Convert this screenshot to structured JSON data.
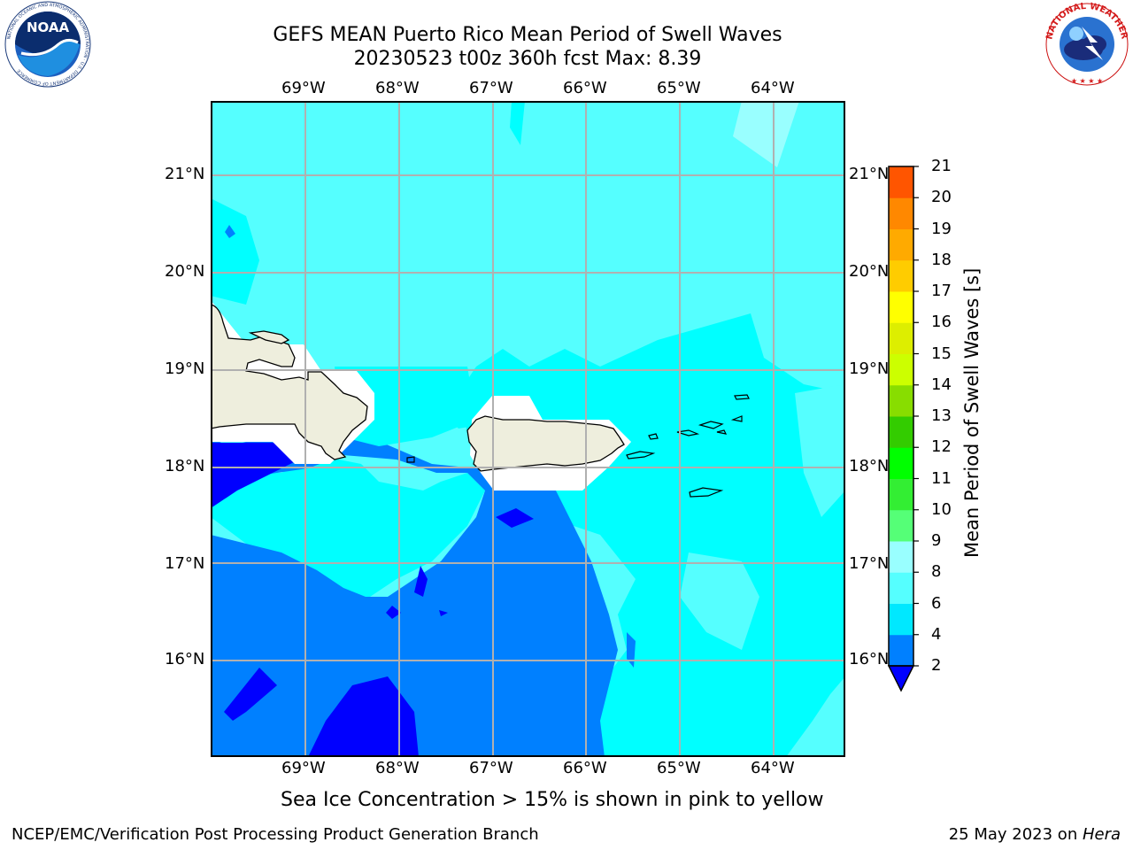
{
  "header": {
    "title_line1": "GEFS MEAN Puerto Rico Mean Period of Swell Waves",
    "title_line2": "20230523 t00z 360h fcst   Max: 8.39"
  },
  "logos": {
    "left": "NOAA",
    "left_ring_text": "NATIONAL OCEANIC AND ATMOSPHERIC ADMINISTRATION · U.S. DEPARTMENT OF COMMERCE",
    "right_ring_text": "NATIONAL WEATHER SERVICE"
  },
  "map": {
    "lon_labels": [
      "69°W",
      "68°W",
      "67°W",
      "66°W",
      "65°W",
      "64°W"
    ],
    "lat_labels": [
      "21°N",
      "20°N",
      "19°N",
      "18°N",
      "17°N",
      "16°N"
    ],
    "ocean_color": "#55ffff",
    "land_color": "#eeeedd"
  },
  "colorbar": {
    "label": "Mean Period of Swell Waves [s]",
    "ticks": [
      "2",
      "4",
      "6",
      "8",
      "9",
      "10",
      "11",
      "12",
      "13",
      "14",
      "15",
      "16",
      "17",
      "18",
      "19",
      "20",
      "21"
    ],
    "colors": [
      "#0080ff",
      "#00e8ff",
      "#55ffff",
      "#99ffff",
      "#55ff77",
      "#33ee33",
      "#00ff00",
      "#33cc00",
      "#88dd00",
      "#ccff00",
      "#ddee00",
      "#ffff00",
      "#ffcc00",
      "#ffaa00",
      "#ff8800",
      "#ff5500",
      "#ff3300",
      "#ff0000"
    ],
    "under_color": "#0000ff"
  },
  "note": "Sea Ice Concentration > 15% is shown in pink to yellow",
  "footer": {
    "left": "NCEP/EMC/Verification Post Processing Product Generation Branch",
    "right_date": "25 May 2023 on ",
    "right_host": "Hera"
  }
}
